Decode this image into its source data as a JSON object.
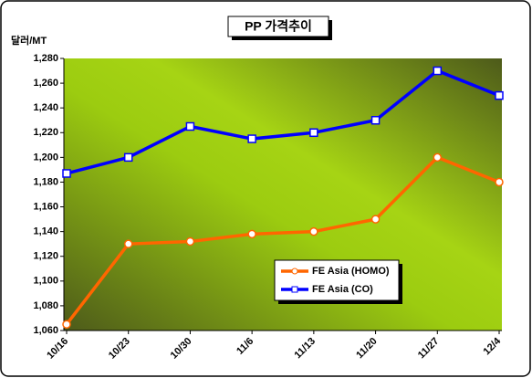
{
  "chart_data": {
    "type": "line",
    "title": "PP 가격추이",
    "y_label": "달러/MT",
    "categories": [
      "10/16",
      "10/23",
      "10/30",
      "11/6",
      "11/13",
      "11/20",
      "11/27",
      "12/4"
    ],
    "series": [
      {
        "name": "FE Asia (HOMO)",
        "color": "#ff6600",
        "values": [
          1065,
          1130,
          1132,
          1138,
          1140,
          1150,
          1200,
          1180
        ]
      },
      {
        "name": "FE Asia (CO)",
        "color": "#0000ff",
        "values": [
          1187,
          1200,
          1225,
          1215,
          1220,
          1230,
          1270,
          1250
        ]
      }
    ],
    "ylim": [
      1060,
      1280
    ],
    "yticks": [
      {
        "value": 1060,
        "label": "1,060"
      },
      {
        "value": 1080,
        "label": "1,080"
      },
      {
        "value": 1100,
        "label": "1,100"
      },
      {
        "value": 1120,
        "label": "1,120"
      },
      {
        "value": 1140,
        "label": "1,140"
      },
      {
        "value": 1160,
        "label": "1,160"
      },
      {
        "value": 1180,
        "label": "1,180"
      },
      {
        "value": 1200,
        "label": "1,200"
      },
      {
        "value": 1220,
        "label": "1,220"
      },
      {
        "value": 1240,
        "label": "1,240"
      },
      {
        "value": 1260,
        "label": "1,260"
      },
      {
        "value": 1280,
        "label": "1,280"
      }
    ]
  }
}
